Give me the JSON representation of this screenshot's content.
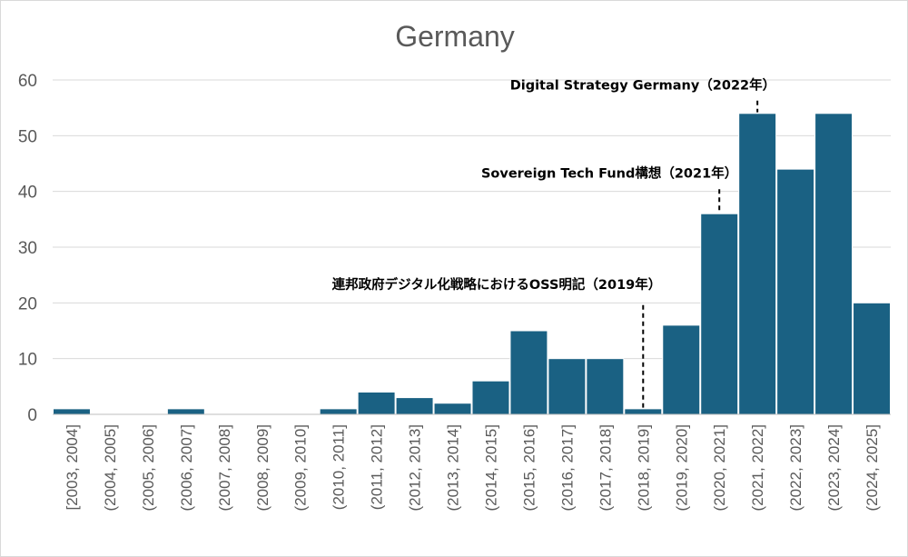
{
  "chart_data": {
    "type": "bar",
    "title": "Germany",
    "xlabel": "",
    "ylabel": "",
    "ylim": [
      0,
      60
    ],
    "yticks": [
      0,
      10,
      20,
      30,
      40,
      50,
      60
    ],
    "grid": true,
    "legend": "none",
    "bar_color": "#1a6183",
    "categories": [
      "[2003, 2004]",
      "(2004, 2005]",
      "(2005, 2006]",
      "(2006, 2007]",
      "(2007, 2008]",
      "(2008, 2009]",
      "(2009, 2010]",
      "(2010, 2011]",
      "(2011, 2012]",
      "(2012, 2013]",
      "(2013, 2014]",
      "(2014, 2015]",
      "(2015, 2016]",
      "(2016, 2017]",
      "(2017, 2018]",
      "(2018, 2019]",
      "(2019, 2020]",
      "(2020, 2021]",
      "(2021, 2022]",
      "(2022, 2023]",
      "(2023, 2024]",
      "(2024, 2025]"
    ],
    "values": [
      1,
      0,
      0,
      1,
      0,
      0,
      0,
      1,
      4,
      3,
      2,
      6,
      15,
      10,
      10,
      1,
      16,
      36,
      54,
      44,
      54,
      20
    ],
    "annotations": [
      {
        "text": "連邦政府デジタル化戦略におけるOSS明記（2019年）",
        "category_index": 15,
        "label_y": 22.5,
        "line_from": 19.6,
        "line_to": 1.2
      },
      {
        "text": "Sovereign Tech Fund構想（2021年）",
        "category_index": 17,
        "label_y": 42.5,
        "line_from": 40.4,
        "line_to": 36.2
      },
      {
        "text": "Digital Strategy Germany（2022年）",
        "category_index": 18,
        "label_y": 58.3,
        "line_from": 56.3,
        "line_to": 54.2
      }
    ]
  }
}
